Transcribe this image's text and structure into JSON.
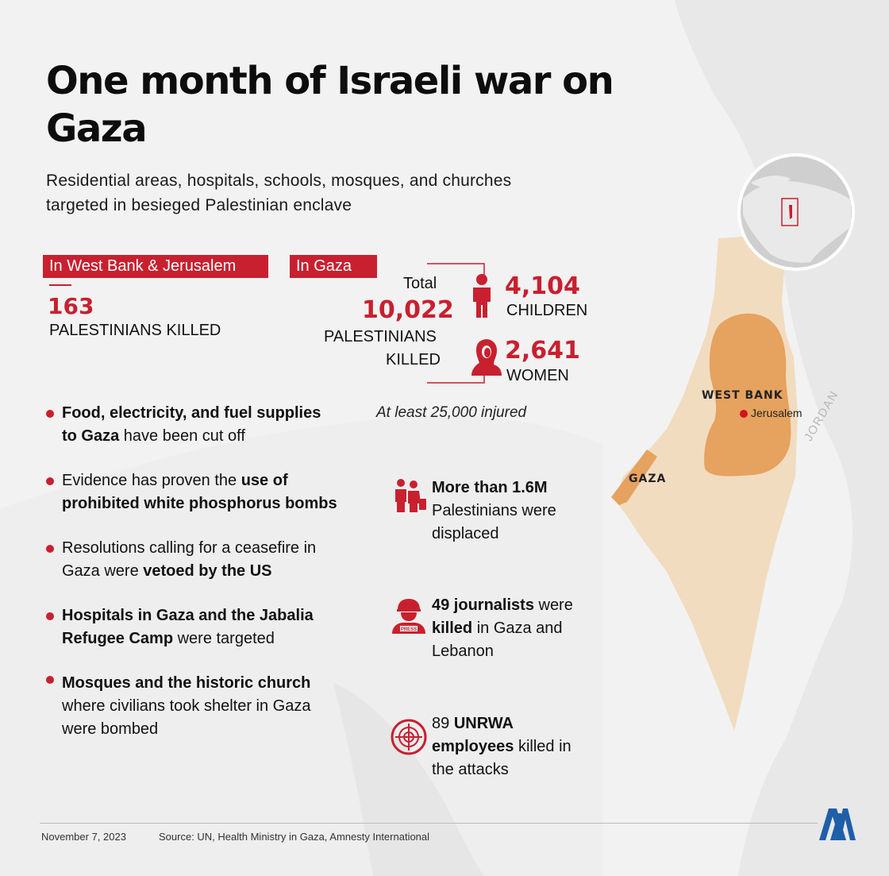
{
  "title": "One month of Israeli war on Gaza",
  "subtitle": "Residential areas, hospitals, schools, mosques, and churches targeted in besieged Palestinian enclave",
  "west_bank": {
    "tag": "In West Bank & Jerusalem",
    "killed": "163",
    "killed_label": "PALESTINIANS KILLED"
  },
  "gaza": {
    "tag": "In Gaza",
    "total_label": "Total",
    "total": "10,022",
    "total_caption_1": "PALESTINIANS",
    "total_caption_2": "KILLED",
    "children": "4,104",
    "children_label": "CHILDREN",
    "women": "2,641",
    "women_label": "WOMEN",
    "injured": "At least 25,000 injured"
  },
  "bullets": [
    {
      "b1": "Food, electricity, and fuel supplies",
      "b2": "to Gaza",
      "t": " have been cut off"
    },
    {
      "t1": "Evidence has proven the ",
      "b1": "use of",
      "b2": "prohibited white phosphorus bombs"
    },
    {
      "t1": "Resolutions calling for a ceasefire in",
      "t2": "Gaza were ",
      "b": "vetoed by the US"
    },
    {
      "b1": "Hospitals in Gaza and the Jabalia",
      "b2": "Refugee Camp",
      "t": " were targeted"
    },
    {
      "b": "Mosques and the historic church",
      "t1": "where civilians took shelter in Gaza",
      "t2": "were bombed"
    }
  ],
  "stats": {
    "displaced_b": "More than 1.6M",
    "displaced_1": "Palestinians were",
    "displaced_2": "displaced",
    "journalists_b": "49 journalists",
    "journalists_t": " were",
    "journalists_b2": "killed",
    "journalists_t2": " in Gaza and",
    "journalists_t3": "Lebanon",
    "unrwa_t": "89 ",
    "unrwa_b": "UNRWA",
    "unrwa_b2": "employees",
    "unrwa_t2": " killed in",
    "unrwa_t3": "the attacks"
  },
  "map": {
    "west_bank": "WEST BANK",
    "jerusalem": "Jerusalem",
    "gaza": "GAZA",
    "jordan": "JORDAN"
  },
  "footer": {
    "date": "November 7, 2023",
    "source": "Source: UN, Health Ministry in Gaza, Amnesty International"
  },
  "colors": {
    "accent": "#c8202f",
    "map_land": "#f1dcc0",
    "map_territory": "#e6a25f"
  },
  "icons": [
    "child-icon",
    "woman-icon",
    "family-icon",
    "journalist-icon",
    "un-emblem-icon",
    "aa-logo-icon",
    "globe-locator-icon"
  ]
}
